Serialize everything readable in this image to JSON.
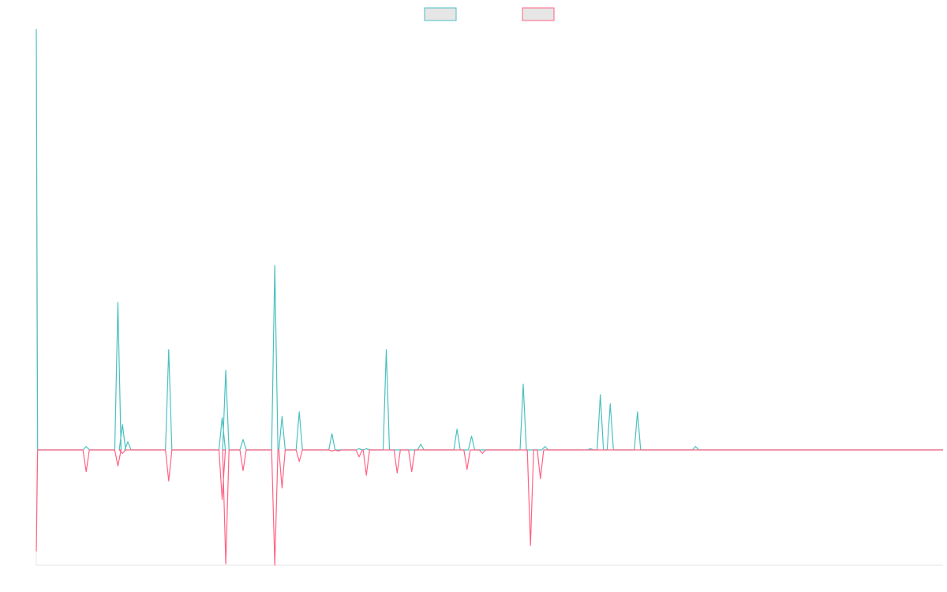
{
  "colors": {
    "series_a": "#4bc0c0",
    "series_b": "#ff6384",
    "legend_fill": "#e6e6e6",
    "axis": "#e6e6e6"
  },
  "chart_data": {
    "type": "line",
    "legend": {
      "position": "top-center",
      "labels": [
        "",
        ""
      ]
    },
    "grid": false,
    "ylim": [
      -100,
      365
    ],
    "x_max": 100,
    "series": [
      {
        "color": "#4bc0c0",
        "points": [
          [
            0,
            365
          ],
          [
            0.15,
            0
          ],
          [
            5.5,
            3
          ],
          [
            9,
            128
          ],
          [
            9.5,
            22
          ],
          [
            10.1,
            7
          ],
          [
            14.6,
            87
          ],
          [
            20.5,
            28
          ],
          [
            20.9,
            69
          ],
          [
            22.8,
            9
          ],
          [
            26.3,
            160
          ],
          [
            27.1,
            29
          ],
          [
            29,
            33
          ],
          [
            32.6,
            14
          ],
          [
            35.6,
            1
          ],
          [
            36.4,
            1
          ],
          [
            38.6,
            87
          ],
          [
            42.4,
            5
          ],
          [
            46.4,
            18
          ],
          [
            48,
            12
          ],
          [
            53.7,
            57
          ],
          [
            56.1,
            3
          ],
          [
            61.1,
            1
          ],
          [
            62.2,
            48
          ],
          [
            63.3,
            40
          ],
          [
            66.3,
            33
          ],
          [
            72.7,
            3
          ]
        ]
      },
      {
        "color": "#ff6384",
        "points": [
          [
            0,
            -88
          ],
          [
            0.15,
            0
          ],
          [
            5.5,
            -19
          ],
          [
            9,
            -14
          ],
          [
            9.5,
            -3
          ],
          [
            14.6,
            -27
          ],
          [
            20.5,
            -43
          ],
          [
            20.9,
            -99
          ],
          [
            22.8,
            -18
          ],
          [
            26.3,
            -100
          ],
          [
            27.1,
            -33
          ],
          [
            29,
            -10
          ],
          [
            32.6,
            -1
          ],
          [
            33.3,
            -1
          ],
          [
            35.6,
            -6
          ],
          [
            36.4,
            -22
          ],
          [
            39.8,
            -20
          ],
          [
            41.4,
            -19
          ],
          [
            47.5,
            -17
          ],
          [
            49.2,
            -3
          ],
          [
            54.5,
            -83
          ],
          [
            55.6,
            -25
          ]
        ]
      }
    ]
  }
}
